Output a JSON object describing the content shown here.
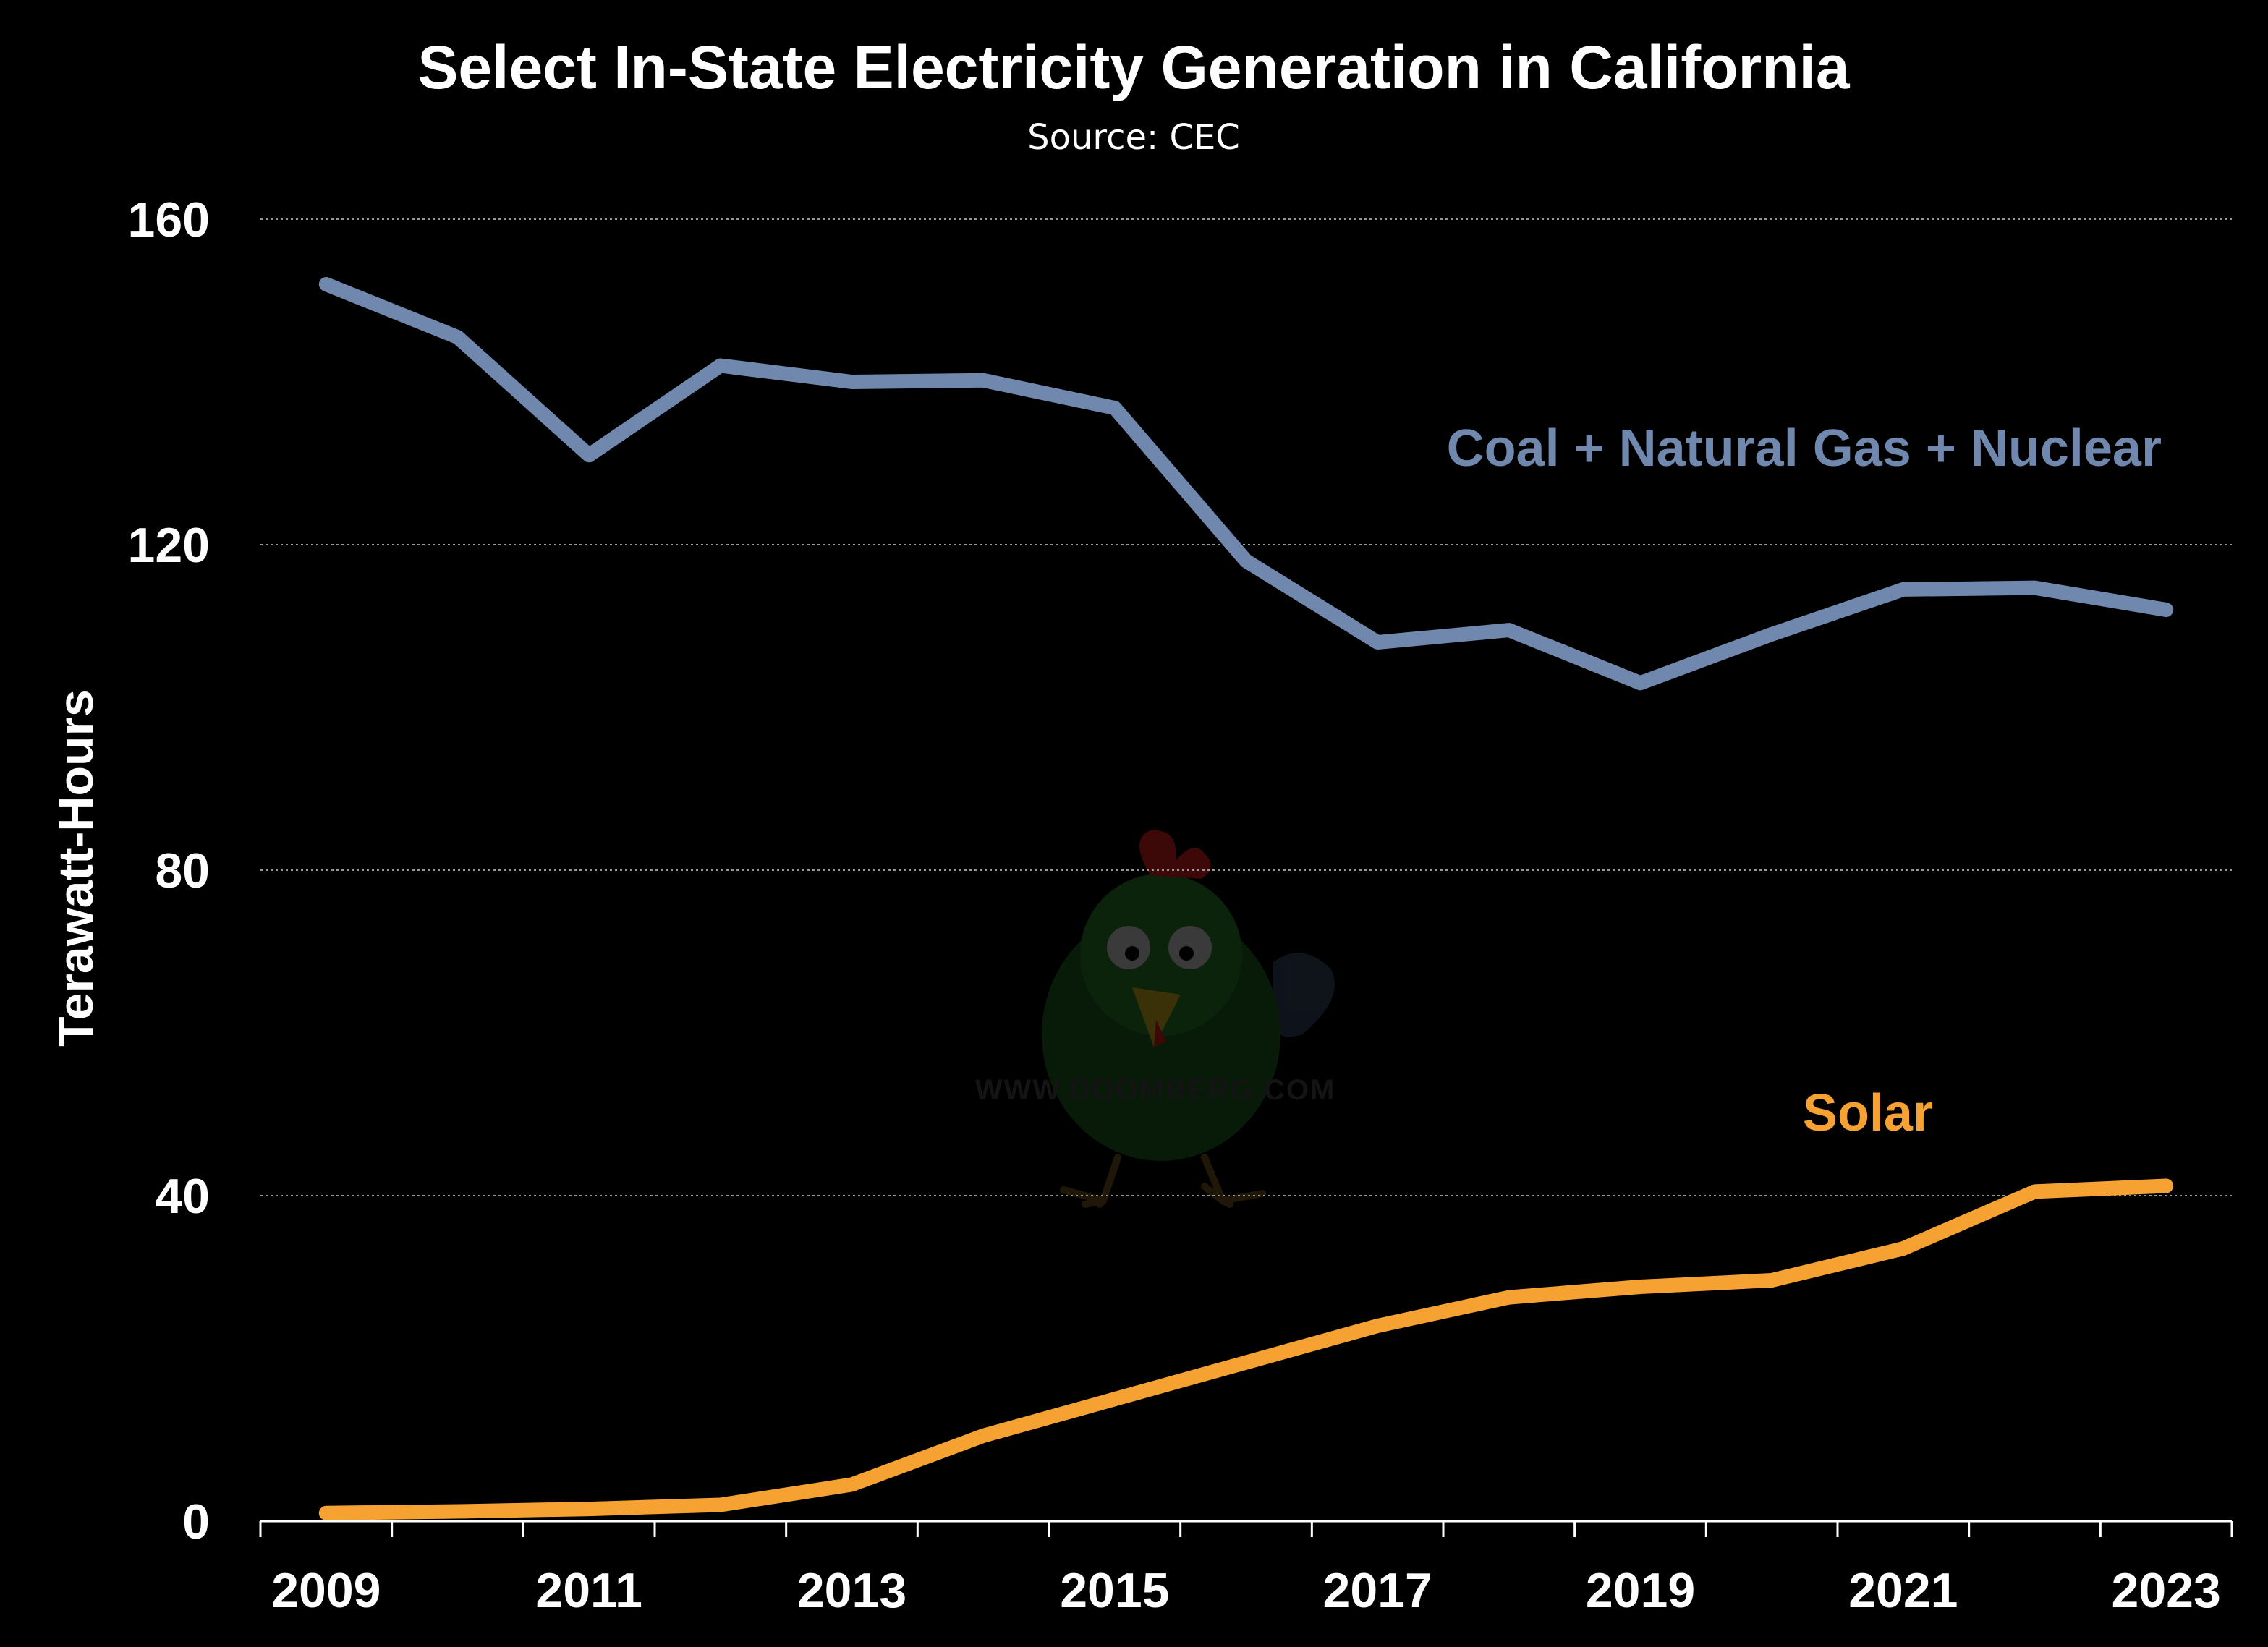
{
  "chart_data": {
    "type": "line",
    "title": "Select In-State Electricity Generation in California",
    "subtitle": "Source: CEC",
    "xlabel": "",
    "ylabel": "Terawatt-Hours",
    "x": [
      2009,
      2010,
      2011,
      2012,
      2013,
      2014,
      2015,
      2016,
      2017,
      2018,
      2019,
      2020,
      2021,
      2022,
      2023
    ],
    "x_tick_labels": [
      "2009",
      "2011",
      "2013",
      "2015",
      "2017",
      "2019",
      "2021",
      "2023"
    ],
    "y_ticks": [
      0,
      40,
      80,
      120,
      160
    ],
    "y_tick_labels": [
      "0",
      "40",
      "80",
      "120",
      "160"
    ],
    "xlim": [
      2009,
      2024
    ],
    "ylim": [
      0,
      160
    ],
    "grid": "horizontal dotted",
    "series": [
      {
        "name": "Coal + Natural Gas + Nuclear",
        "color": "#7088ad",
        "values": [
          152,
          145.5,
          131,
          142,
          140,
          140.2,
          136.8,
          118,
          108,
          109.5,
          103,
          109,
          114.5,
          114.7,
          112
        ]
      },
      {
        "name": "Solar",
        "color": "#f6a233",
        "values": [
          1,
          1.2,
          1.5,
          2,
          4.5,
          10.5,
          15,
          19.5,
          24,
          27.5,
          28.8,
          29.6,
          33.5,
          40.5,
          41.2
        ]
      }
    ]
  },
  "watermark": {
    "text": "WWW.DOOMBERG.COM",
    "icon": "chicken-mascot-icon"
  }
}
